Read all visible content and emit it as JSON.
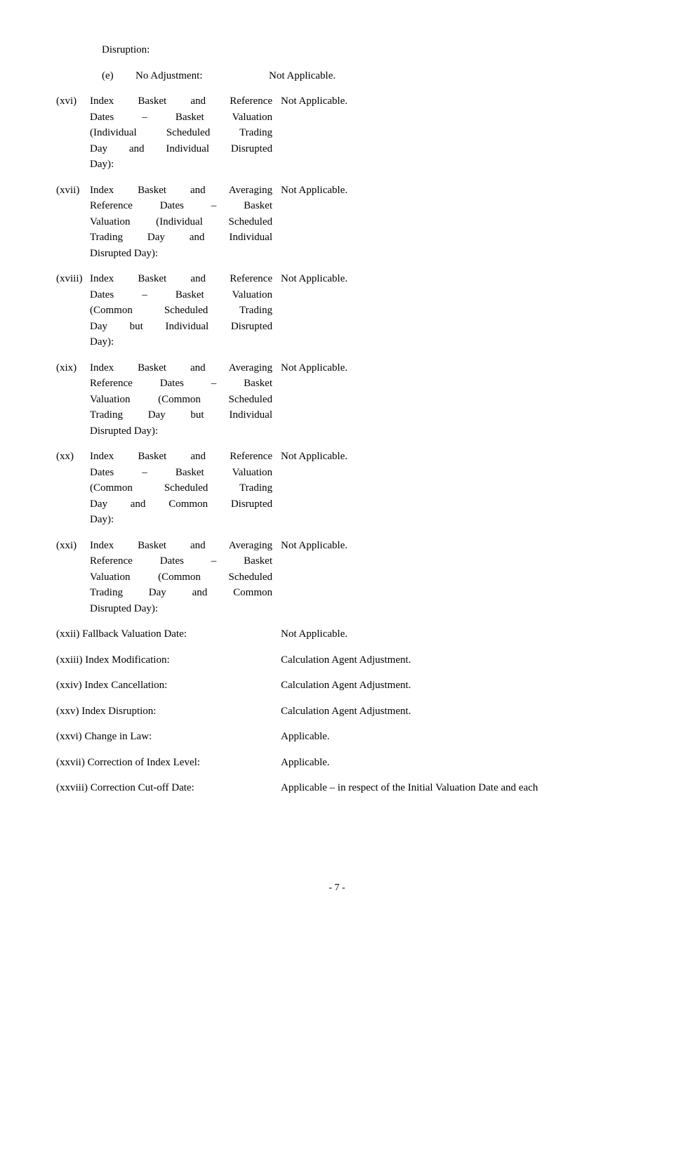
{
  "header": "Disruption:",
  "sub_e": {
    "marker": "(e)",
    "label": "No Adjustment:",
    "value": "Not Applicable."
  },
  "items": [
    {
      "marker": "(xvi)",
      "label_lines": [
        "Index Basket and Reference",
        "Dates – Basket Valuation",
        "(Individual Scheduled Trading",
        "Day and Individual Disrupted"
      ],
      "label_last": "Day):",
      "value": "Not Applicable."
    },
    {
      "marker": "(xvii)",
      "label_lines": [
        "Index Basket and Averaging",
        "Reference Dates – Basket",
        "Valuation (Individual Scheduled",
        "Trading Day and Individual"
      ],
      "label_last": "Disrupted Day):",
      "value": "Not Applicable."
    },
    {
      "marker": "(xviii)",
      "label_lines": [
        "Index Basket and Reference",
        "Dates – Basket Valuation",
        "(Common Scheduled Trading",
        "Day but Individual Disrupted"
      ],
      "label_last": "Day):",
      "value": "Not Applicable."
    },
    {
      "marker": "(xix)",
      "label_lines": [
        "Index Basket and Averaging",
        "Reference Dates – Basket",
        "Valuation (Common Scheduled",
        "Trading Day but Individual"
      ],
      "label_last": "Disrupted Day):",
      "value": "Not Applicable."
    },
    {
      "marker": "(xx)",
      "label_lines": [
        "Index Basket and Reference",
        "Dates – Basket Valuation",
        "(Common Scheduled Trading",
        "Day and Common Disrupted"
      ],
      "label_last": "Day):",
      "value": "Not Applicable."
    },
    {
      "marker": "(xxi)",
      "label_lines": [
        "Index Basket and Averaging",
        "Reference Dates – Basket",
        "Valuation (Common Scheduled",
        "Trading Day and Common"
      ],
      "label_last": "Disrupted Day):",
      "value": "Not Applicable."
    }
  ],
  "short_items": [
    {
      "marker": "(xxii)",
      "label": "Fallback Valuation Date:",
      "value": "Not Applicable."
    },
    {
      "marker": "(xxiii)",
      "label": "Index Modification:",
      "value": "Calculation Agent Adjustment."
    },
    {
      "marker": "(xxiv)",
      "label": "Index Cancellation:",
      "value": "Calculation Agent Adjustment."
    },
    {
      "marker": "(xxv)",
      "label": "Index Disruption:",
      "value": "Calculation Agent Adjustment."
    },
    {
      "marker": "(xxvi)",
      "label": "Change in Law:",
      "value": "Applicable."
    },
    {
      "marker": "(xxvii)",
      "label": "Correction of Index Level:",
      "value": "Applicable."
    },
    {
      "marker": "(xxviii)",
      "label": "Correction Cut-off Date:",
      "value": "Applicable – in respect of the Initial Valuation Date and each"
    }
  ],
  "page_number": "- 7 -"
}
